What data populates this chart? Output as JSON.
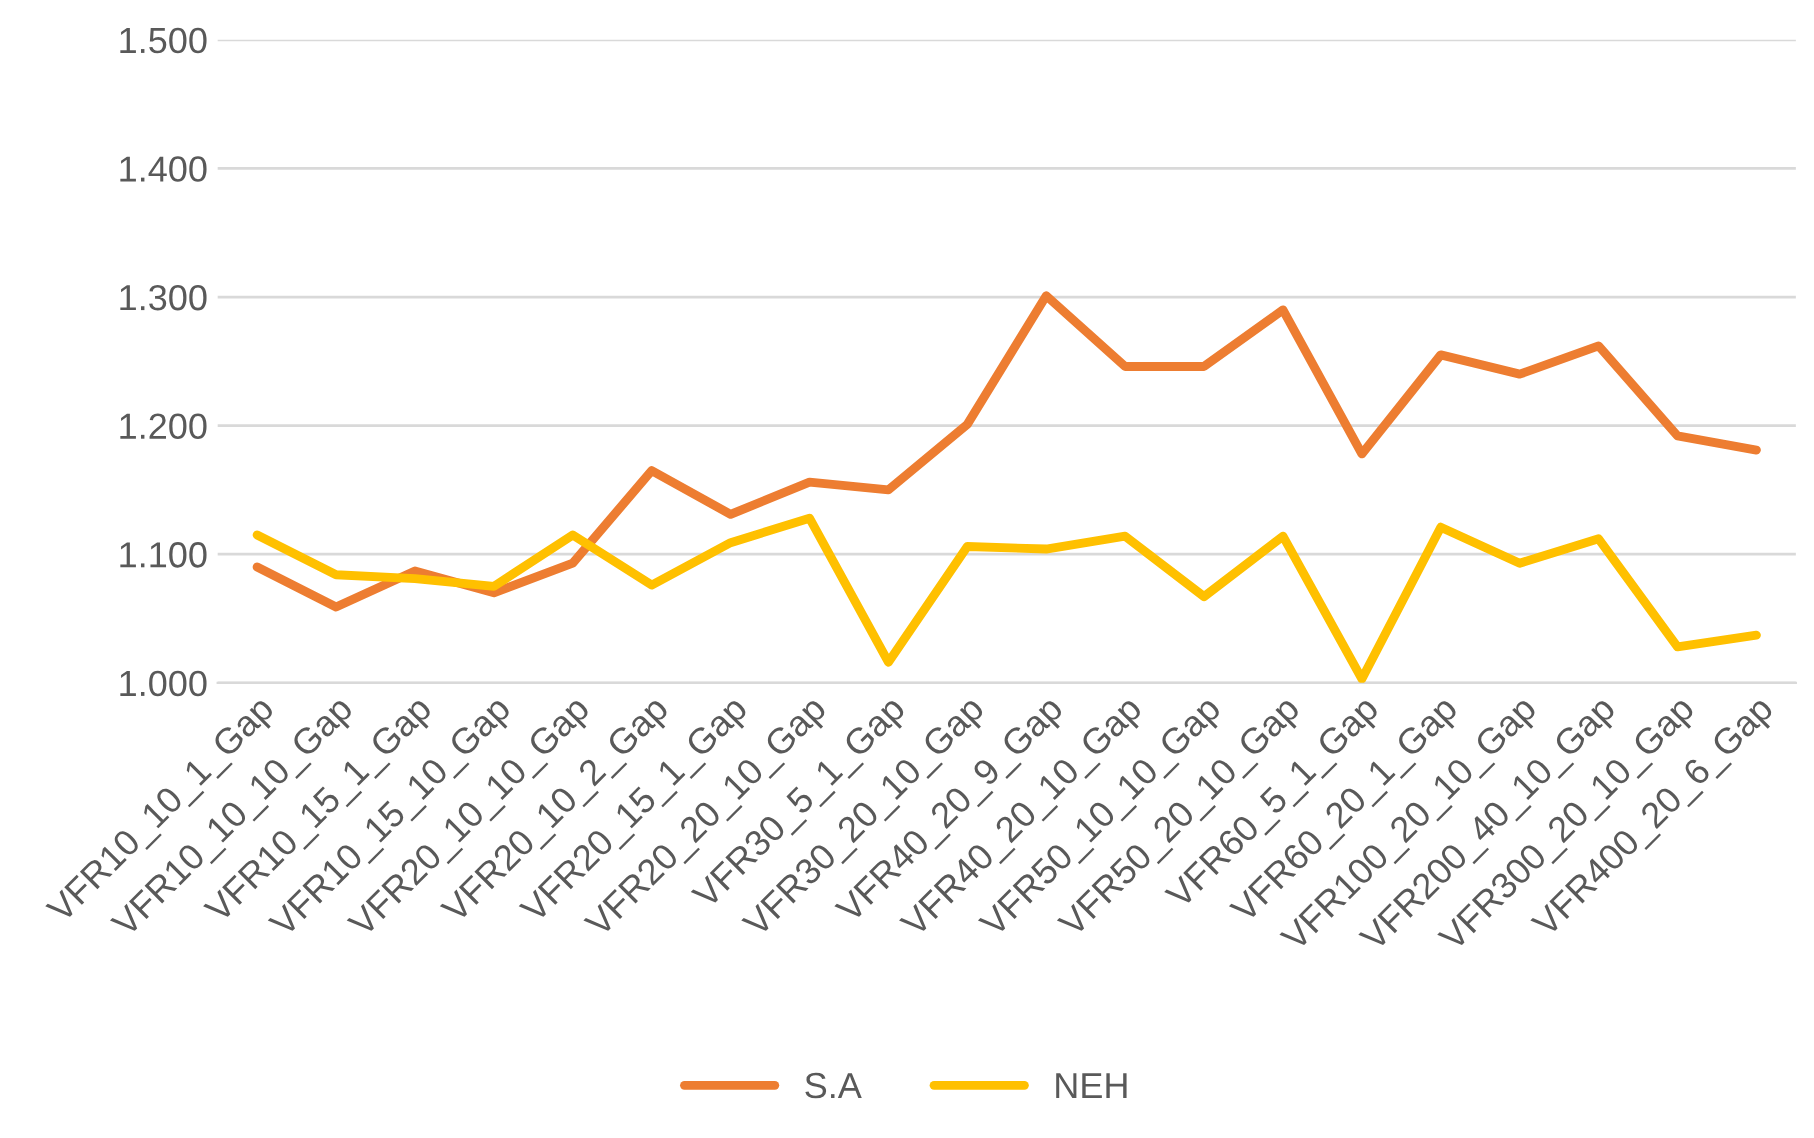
{
  "chart_data": {
    "type": "line",
    "categories": [
      "VFR10_10_1_Gap",
      "VFR10_10_10_Gap",
      "VFR10_15_1_Gap",
      "VFR10_15_10_Gap",
      "VFR20_10_10_Gap",
      "VFR20_10_2_Gap",
      "VFR20_15_1_Gap",
      "VFR20_20_10_Gap",
      "VFR30_5_1_Gap",
      "VFR30_20_10_Gap",
      "VFR40_20_9_Gap",
      "VFR40_20_10_Gap",
      "VFR50_10_10_Gap",
      "VFR50_20_10_Gap",
      "VFR60_5_1_Gap",
      "VFR60_20_1_Gap",
      "VFR100_20_10_Gap",
      "VFR200_40_10_Gap",
      "VFR300_20_10_Gap",
      "VFR400_20_6_Gap"
    ],
    "series": [
      {
        "name": "S.A",
        "color": "#ed7d31",
        "values": [
          1.09,
          1.059,
          1.087,
          1.07,
          1.093,
          1.165,
          1.131,
          1.156,
          1.15,
          1.201,
          1.301,
          1.246,
          1.246,
          1.29,
          1.178,
          1.255,
          1.24,
          1.262,
          1.192,
          1.181
        ]
      },
      {
        "name": "NEH",
        "color": "#ffc000",
        "values": [
          1.115,
          1.084,
          1.081,
          1.075,
          1.115,
          1.076,
          1.109,
          1.128,
          1.016,
          1.106,
          1.104,
          1.114,
          1.067,
          1.114,
          1.003,
          1.121,
          1.093,
          1.112,
          1.028,
          1.037
        ]
      }
    ],
    "ylim": [
      1.0,
      1.5
    ],
    "yticks": [
      {
        "value": 1.0,
        "label": "1.000"
      },
      {
        "value": 1.1,
        "label": "1.100"
      },
      {
        "value": 1.2,
        "label": "1.200"
      },
      {
        "value": 1.3,
        "label": "1.300"
      },
      {
        "value": 1.4,
        "label": "1.400"
      },
      {
        "value": 1.5,
        "label": "1.500"
      }
    ],
    "grid": "y",
    "legend": "bottom",
    "marker": "none",
    "line_style": "solid"
  }
}
